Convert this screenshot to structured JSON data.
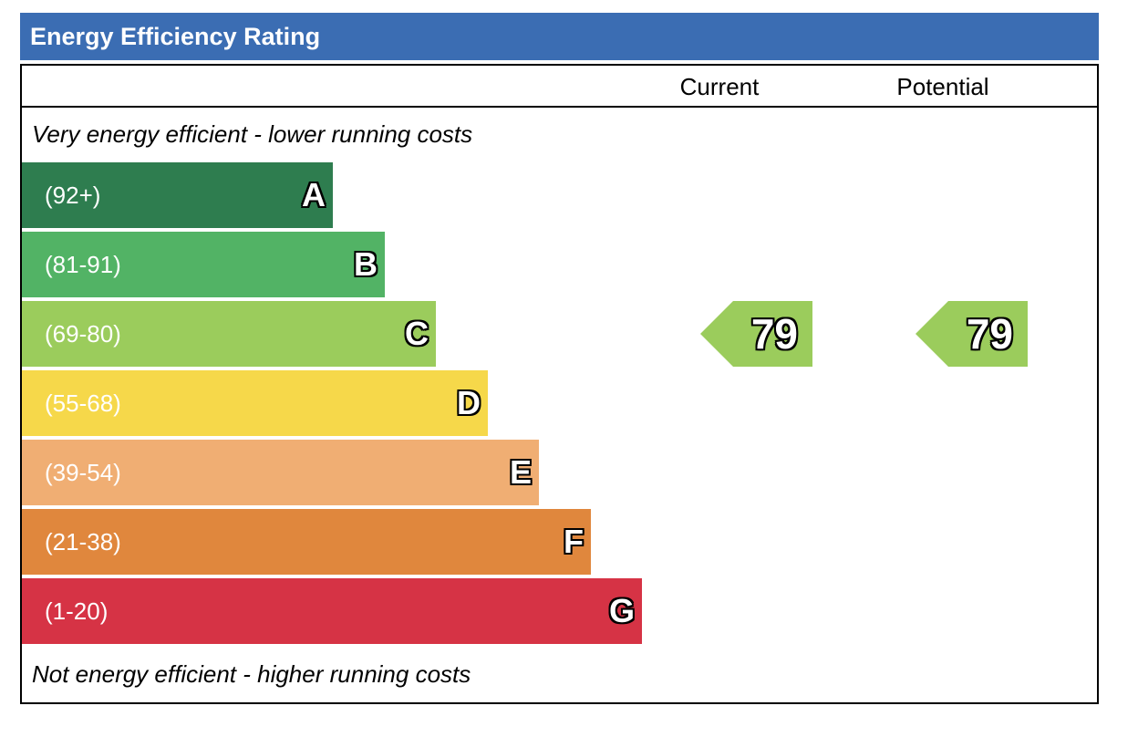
{
  "title": "Energy Efficiency Rating",
  "columns": {
    "current": "Current",
    "potential": "Potential"
  },
  "notes": {
    "top": "Very energy efficient - lower running costs",
    "bottom": "Not energy efficient - higher running costs"
  },
  "chart_data": {
    "type": "bar",
    "title": "Energy Efficiency Rating",
    "categories": [
      "A",
      "B",
      "C",
      "D",
      "E",
      "F",
      "G"
    ],
    "bands": [
      {
        "letter": "A",
        "range": "(92+)",
        "color": "#2e7d4f"
      },
      {
        "letter": "B",
        "range": "(81-91)",
        "color": "#52b365"
      },
      {
        "letter": "C",
        "range": "(69-80)",
        "color": "#9bcc5c"
      },
      {
        "letter": "D",
        "range": "(55-68)",
        "color": "#f6d84a"
      },
      {
        "letter": "E",
        "range": "(39-54)",
        "color": "#f0ae73"
      },
      {
        "letter": "F",
        "range": "(21-38)",
        "color": "#e0873d"
      },
      {
        "letter": "G",
        "range": "(1-20)",
        "color": "#d63345"
      }
    ],
    "current": {
      "value": 79,
      "band": "C",
      "color": "#9bcc5c"
    },
    "potential": {
      "value": 79,
      "band": "C",
      "color": "#9bcc5c"
    }
  }
}
